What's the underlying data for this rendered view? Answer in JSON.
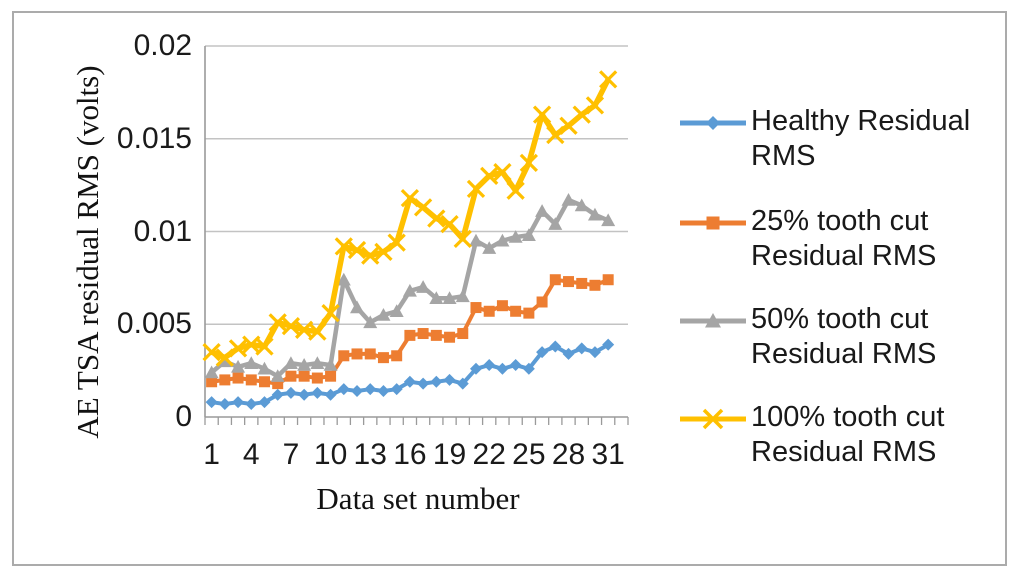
{
  "figure": {
    "background": "#ffffff",
    "border_color": "#ababab"
  },
  "chart_data": {
    "type": "line",
    "title": "",
    "xlabel": "Data set number",
    "ylabel": "AE TSA residual RMS (volts)",
    "x": [
      1,
      2,
      3,
      4,
      5,
      6,
      7,
      8,
      9,
      10,
      11,
      12,
      13,
      14,
      15,
      16,
      17,
      18,
      19,
      20,
      21,
      22,
      23,
      24,
      25,
      26,
      27,
      28,
      29,
      30,
      31
    ],
    "x_tick_labels": [
      "1",
      "4",
      "7",
      "10",
      "13",
      "16",
      "19",
      "22",
      "25",
      "28",
      "31"
    ],
    "ylim": [
      0,
      0.02
    ],
    "y_ticks": [
      0,
      0.005,
      0.01,
      0.015,
      0.02
    ],
    "y_tick_labels": [
      "0",
      "0.005",
      "0.01",
      "0.015",
      "0.02"
    ],
    "grid": true,
    "legend_position": "right",
    "gridline_color": "#c3c3c3",
    "axis_color": "#9a9a9a",
    "series": [
      {
        "name": "Healthy Residual RMS",
        "color": "#5b9bd5",
        "marker": "diamond",
        "values": [
          0.0008,
          0.0007,
          0.0008,
          0.0007,
          0.0008,
          0.0012,
          0.0013,
          0.0012,
          0.0013,
          0.0012,
          0.0015,
          0.0014,
          0.0015,
          0.0014,
          0.0015,
          0.0019,
          0.0018,
          0.0019,
          0.002,
          0.0018,
          0.0026,
          0.0028,
          0.0026,
          0.0028,
          0.0026,
          0.0035,
          0.0038,
          0.0034,
          0.0037,
          0.0035,
          0.0039
        ]
      },
      {
        "name": "25% tooth cut Residual RMS",
        "color": "#ed7d31",
        "marker": "square",
        "values": [
          0.0019,
          0.002,
          0.0021,
          0.002,
          0.0019,
          0.0018,
          0.0022,
          0.0022,
          0.0021,
          0.0022,
          0.0033,
          0.0034,
          0.0034,
          0.0032,
          0.0033,
          0.0044,
          0.0045,
          0.0044,
          0.0043,
          0.0045,
          0.0059,
          0.0057,
          0.006,
          0.0057,
          0.0056,
          0.0062,
          0.0074,
          0.0073,
          0.0072,
          0.0071,
          0.0074
        ]
      },
      {
        "name": "50% tooth cut Residual RMS",
        "color": "#a5a5a5",
        "marker": "triangle",
        "values": [
          0.0024,
          0.003,
          0.0027,
          0.0029,
          0.0026,
          0.0022,
          0.0029,
          0.0028,
          0.0029,
          0.0028,
          0.0074,
          0.0059,
          0.0051,
          0.0055,
          0.0057,
          0.0068,
          0.007,
          0.0064,
          0.0064,
          0.0065,
          0.0095,
          0.0091,
          0.0095,
          0.0097,
          0.0098,
          0.0111,
          0.0104,
          0.0117,
          0.0114,
          0.0109,
          0.0106
        ]
      },
      {
        "name": "100% tooth cut Residual RMS",
        "color": "#ffc000",
        "marker": "x",
        "values": [
          0.0035,
          0.0032,
          0.0037,
          0.0039,
          0.0038,
          0.0051,
          0.0049,
          0.0047,
          0.0046,
          0.0056,
          0.0092,
          0.009,
          0.0087,
          0.0089,
          0.0094,
          0.0118,
          0.0113,
          0.0107,
          0.0104,
          0.0096,
          0.0123,
          0.013,
          0.0132,
          0.0122,
          0.0137,
          0.0163,
          0.0152,
          0.0157,
          0.0163,
          0.0168,
          0.0182
        ]
      }
    ]
  }
}
